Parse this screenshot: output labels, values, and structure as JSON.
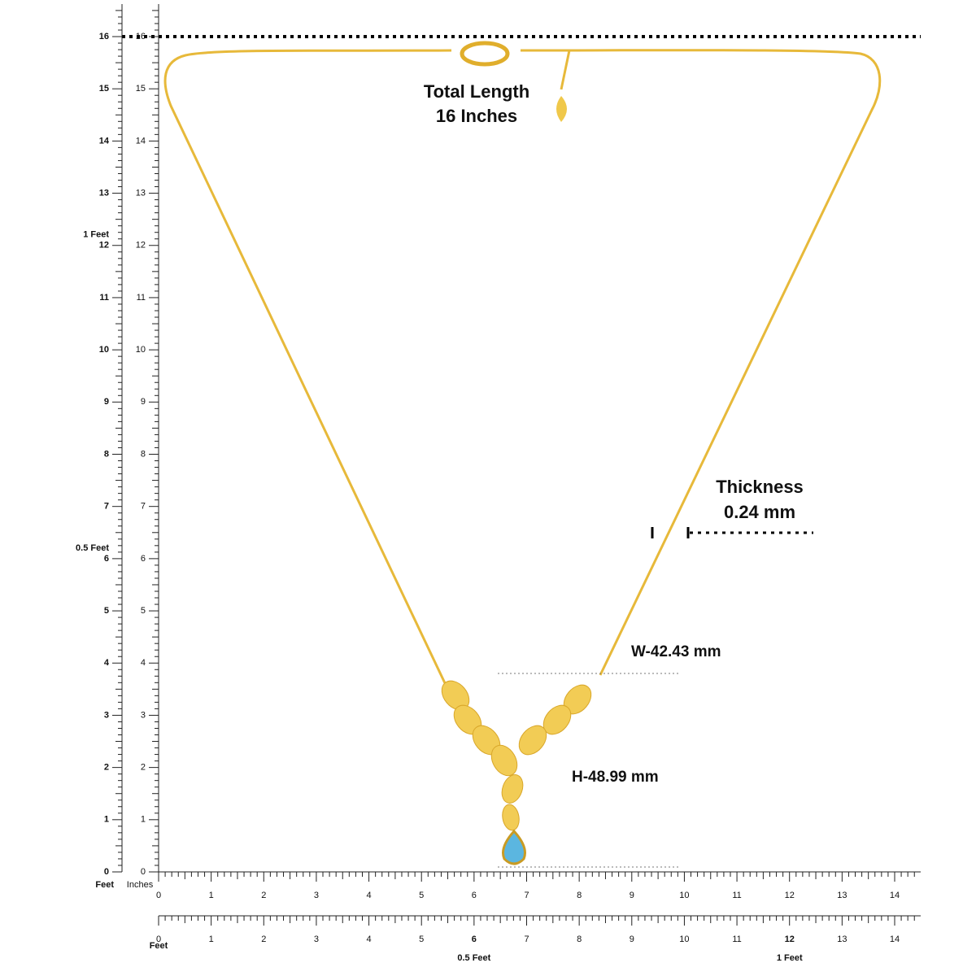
{
  "measurements": {
    "total_length": {
      "label": "Total Length",
      "value": "16 Inches"
    },
    "thickness": {
      "label": "Thickness",
      "value": "0.24 mm"
    },
    "width": "W-42.43 mm",
    "height": "H-48.99 mm"
  },
  "left_ruler": {
    "unit": "Feet",
    "numbers": [
      0,
      1,
      2,
      3,
      4,
      5,
      6,
      7,
      8,
      9,
      10,
      11,
      12,
      13,
      14,
      15,
      16
    ],
    "feet_marks": [
      {
        "inches": 6,
        "label": "0.5 Feet"
      },
      {
        "inches": 12,
        "label": "1 Feet"
      }
    ]
  },
  "inner_ruler": {
    "numbers": [
      0,
      1,
      2,
      3,
      4,
      5,
      6,
      7,
      8,
      9,
      10,
      11,
      12,
      13,
      14,
      15,
      16
    ]
  },
  "bottom_ruler": {
    "unit": "Inches",
    "numbers": [
      0,
      1,
      2,
      3,
      4,
      5,
      6,
      7,
      8,
      9,
      10,
      11,
      12,
      13,
      14
    ]
  },
  "second_ruler": {
    "unit": "Feet",
    "numbers": [
      0,
      1,
      2,
      3,
      4,
      5,
      6,
      7,
      8,
      9,
      10,
      11,
      12,
      13,
      14
    ],
    "feet_marks": [
      {
        "inches": 6,
        "label": "0.5 Feet"
      },
      {
        "inches": 12,
        "label": "1 Feet"
      }
    ]
  }
}
